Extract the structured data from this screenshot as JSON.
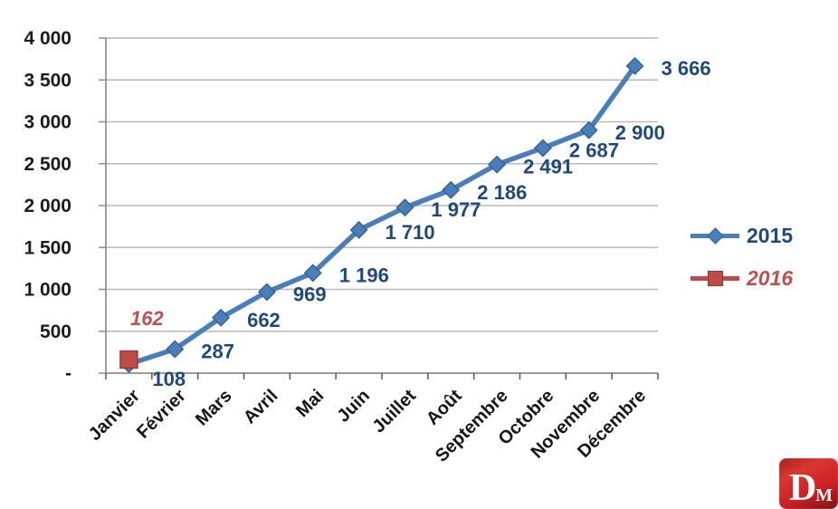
{
  "chart_data": {
    "type": "line",
    "categories": [
      "Janvier",
      "Février",
      "Mars",
      "Avril",
      "Mai",
      "Juin",
      "Juillet",
      "Août",
      "Septembre",
      "Octobre",
      "Novembre",
      "Décembre"
    ],
    "series": [
      {
        "name": "2015",
        "marker": "diamond",
        "color": "#4A7EBB",
        "marker_stroke": "#36618F",
        "label_color": "#1F497D",
        "label_style": "normal",
        "label_position": "right",
        "values": [
          108,
          287,
          662,
          969,
          1196,
          1710,
          1977,
          2186,
          2491,
          2687,
          2900,
          3666
        ],
        "labels": [
          "108",
          "287",
          "662",
          "969",
          "1 196",
          "1 710",
          "1 977",
          "2 186",
          "2 491",
          "2 687",
          "2 900",
          "3 666"
        ]
      },
      {
        "name": "2016",
        "marker": "square",
        "color": "#BE4B48",
        "marker_stroke": "#943634",
        "label_color": "#C0504D",
        "label_style": "italic",
        "label_position": "above",
        "values": [
          162,
          null,
          null,
          null,
          null,
          null,
          null,
          null,
          null,
          null,
          null,
          null
        ],
        "labels": [
          "162",
          "",
          "",
          "",
          "",
          "",
          "",
          "",
          "",
          "",
          "",
          ""
        ]
      }
    ],
    "y_axis": {
      "min": 0,
      "max": 4000,
      "step": 500,
      "tick_labels": [
        "-",
        "500",
        "1 000",
        "1 500",
        "2 000",
        "2 500",
        "3 000",
        "3 500",
        "4 000"
      ]
    },
    "x_label_rotation_deg": -45,
    "grid": true,
    "legend_position": "right"
  },
  "colors": {
    "grid": "#B9B9B9",
    "axis": "#8E8E8E",
    "tick": "#4D4D4D",
    "background": "#FFFFFF"
  },
  "logo": {
    "letter_d": "D",
    "letter_m": "M"
  }
}
